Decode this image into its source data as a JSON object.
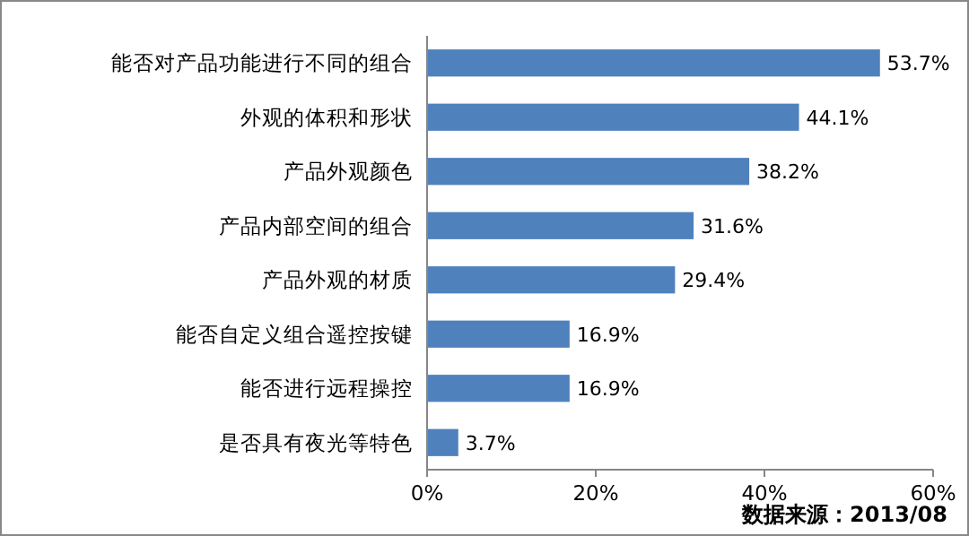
{
  "chart_data": {
    "type": "bar",
    "orientation": "horizontal",
    "categories": [
      "能否对产品功能进行不同的组合",
      "外观的体积和形状",
      "产品外观颜色",
      "产品内部空间的组合",
      "产品外观的材质",
      "能否自定义组合遥控按键",
      "能否进行远程操控",
      "是否具有夜光等特色"
    ],
    "values": [
      53.7,
      44.1,
      38.2,
      31.6,
      29.4,
      16.9,
      16.9,
      3.7
    ],
    "value_labels": [
      "53.7%",
      "44.1%",
      "38.2%",
      "31.6%",
      "29.4%",
      "16.9%",
      "16.9%",
      "3.7%"
    ],
    "color": "#4f81bd",
    "xlim": [
      0,
      60
    ],
    "xticks": [
      {
        "value": 0,
        "label": "0%"
      },
      {
        "value": 20,
        "label": "20%"
      },
      {
        "value": 40,
        "label": "40%"
      },
      {
        "value": 60,
        "label": "60%"
      }
    ],
    "annotations": [
      "数据来源：2013/08"
    ]
  }
}
